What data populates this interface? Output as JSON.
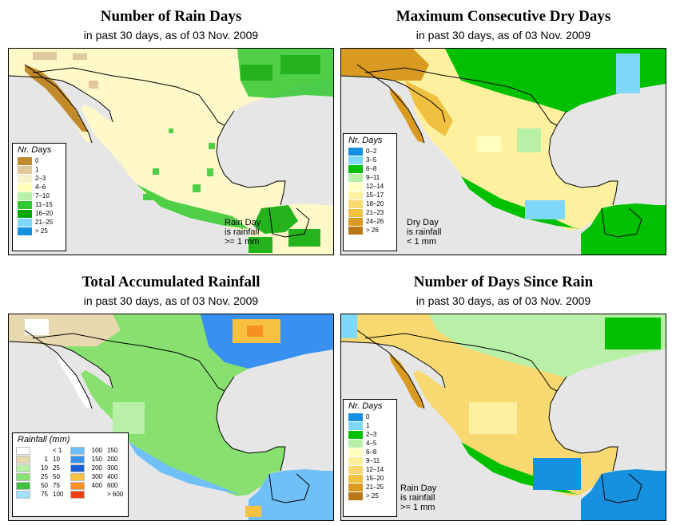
{
  "panels": [
    {
      "title": "Number of Rain Days",
      "subtitle": "in past 30 days, as of  03 Nov. 2009",
      "legend": {
        "title": "Nr. Days",
        "items": [
          {
            "label": "0",
            "color": "#c08a2a"
          },
          {
            "label": "1",
            "color": "#e0c89a"
          },
          {
            "label": "2–3",
            "color": "#f8f0c8"
          },
          {
            "label": "4–6",
            "color": "#ffffb8"
          },
          {
            "label": "7–10",
            "color": "#b8f0a8"
          },
          {
            "label": "11–15",
            "color": "#30c830"
          },
          {
            "label": "16–20",
            "color": "#00a800"
          },
          {
            "label": "21–25",
            "color": "#80d8f8"
          },
          {
            "label": "> 25",
            "color": "#1890e0"
          }
        ]
      },
      "note": [
        "Rain Day",
        "is rainfall",
        ">= 1 mm"
      ]
    },
    {
      "title": "Maximum Consecutive Dry Days",
      "subtitle": "in past 30 days, as of  03 Nov. 2009",
      "legend": {
        "title": "Nr. Days",
        "items": [
          {
            "label": "0–2",
            "color": "#1890e0"
          },
          {
            "label": "3–5",
            "color": "#80d8f8"
          },
          {
            "label": "6–8",
            "color": "#00c000"
          },
          {
            "label": "9–11",
            "color": "#b8f0a8"
          },
          {
            "label": "12–14",
            "color": "#ffffc0"
          },
          {
            "label": "15–17",
            "color": "#fff0a0"
          },
          {
            "label": "18–20",
            "color": "#f8d870"
          },
          {
            "label": "21–23",
            "color": "#f0c040"
          },
          {
            "label": "24–26",
            "color": "#d89a20"
          },
          {
            "label": "> 26",
            "color": "#b87818"
          }
        ]
      },
      "note": [
        "Dry Day",
        "is rainfall",
        "< 1 mm"
      ]
    },
    {
      "title": "Total Accumulated Rainfall",
      "subtitle": "in past 30 days, as of  03 Nov. 2009",
      "legend": {
        "title": "Rainfall (mm)",
        "left": [
          {
            "a": "",
            "b": "< 1",
            "color": "#ffffff"
          },
          {
            "a": "1",
            "b": "10",
            "color": "#e8d8b0"
          },
          {
            "a": "10",
            "b": "25",
            "color": "#b8f0a8"
          },
          {
            "a": "25",
            "b": "50",
            "color": "#88e070"
          },
          {
            "a": "50",
            "b": "75",
            "color": "#40c040"
          },
          {
            "a": "75",
            "b": "100",
            "color": "#a0e0f8"
          }
        ],
        "right": [
          {
            "a": "100",
            "b": "150",
            "color": "#70c0f8"
          },
          {
            "a": "150",
            "b": "200",
            "color": "#3890f0"
          },
          {
            "a": "200",
            "b": "300",
            "color": "#1860d8"
          },
          {
            "a": "300",
            "b": "400",
            "color": "#f8c040"
          },
          {
            "a": "400",
            "b": "600",
            "color": "#f89020"
          },
          {
            "a": "",
            "b": "> 600",
            "color": "#f04010"
          }
        ]
      }
    },
    {
      "title": "Number of Days Since Rain",
      "subtitle": "in past 30 days, as of  03 Nov. 2009",
      "legend": {
        "title": "Nr. Days",
        "items": [
          {
            "label": "0",
            "color": "#1890e0"
          },
          {
            "label": "1",
            "color": "#80d8f8"
          },
          {
            "label": "2–3",
            "color": "#00c000"
          },
          {
            "label": "4–5",
            "color": "#b8f0a8"
          },
          {
            "label": "6–8",
            "color": "#ffffc0"
          },
          {
            "label": "9–11",
            "color": "#fff0a0"
          },
          {
            "label": "12–14",
            "color": "#f8d870"
          },
          {
            "label": "15–20",
            "color": "#f0c040"
          },
          {
            "label": "21–25",
            "color": "#d89a20"
          },
          {
            "label": "> 25",
            "color": "#b87818"
          }
        ]
      },
      "note": [
        "Rain Day",
        "is rainfall",
        ">= 1 mm"
      ]
    }
  ]
}
